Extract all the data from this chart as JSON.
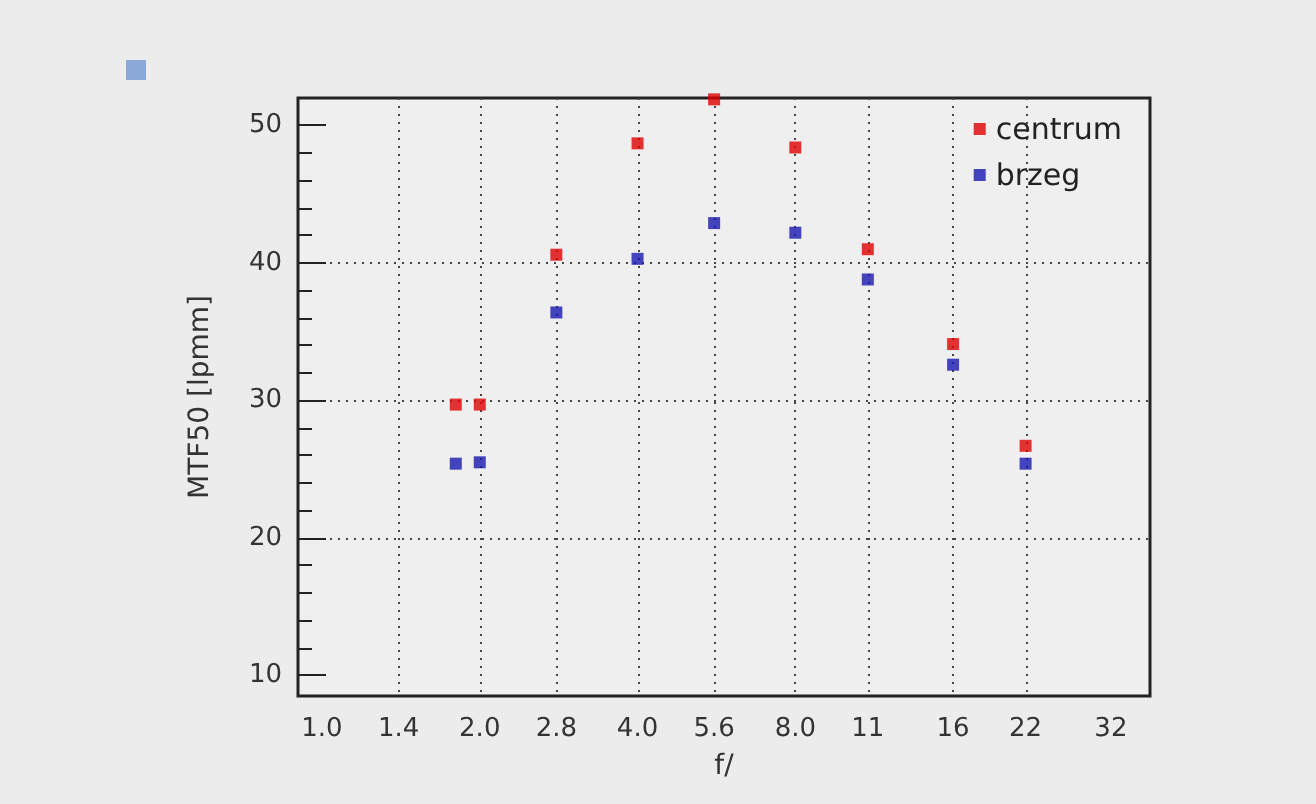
{
  "chart_data": {
    "type": "scatter",
    "xlabel": "f/",
    "ylabel": "MTF50 [lpmm]",
    "log": "x",
    "xlim": [
      0.9,
      38
    ],
    "xticks": [
      {
        "value": 1,
        "label": "1.0"
      },
      1.4,
      {
        "value": 2,
        "label": "2.0"
      },
      2.8,
      {
        "value": 4,
        "label": "4.0"
      },
      5.6,
      {
        "value": 8,
        "label": "8.0"
      },
      11,
      16,
      22,
      32
    ],
    "ylim": [
      8.5,
      52
    ],
    "yticks": [
      10,
      20,
      30,
      40,
      50
    ],
    "grid": true,
    "legend": "top right",
    "marker": "square",
    "x": [
      1.8,
      2,
      2.8,
      4,
      5.6,
      8,
      11,
      16,
      22
    ],
    "series": [
      {
        "name": "centrum",
        "color": "#e00000",
        "values": [
          29.7,
          29.7,
          40.6,
          48.7,
          51.9,
          48.4,
          41.0,
          34.1,
          26.7
        ]
      },
      {
        "name": "brzeg",
        "color": "#1818b0",
        "values": [
          25.4,
          25.5,
          36.4,
          40.3,
          42.9,
          42.2,
          38.8,
          32.6,
          25.4
        ]
      }
    ]
  }
}
